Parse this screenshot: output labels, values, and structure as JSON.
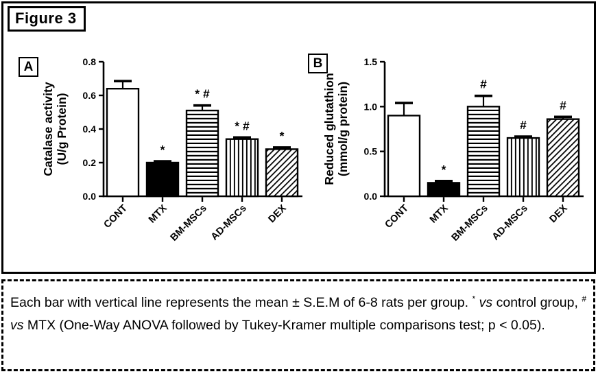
{
  "figure_label": "Figure 3",
  "panels": [
    {
      "label": "A"
    },
    {
      "label": "B"
    }
  ],
  "chart_data": [
    {
      "type": "bar",
      "panel": "A",
      "ylabel_line1": "Catalase activity",
      "ylabel_line2": "(U/g Protein)",
      "categories": [
        "CONT",
        "MTX",
        "BM-MSCs",
        "AD-MSCs",
        "DEX"
      ],
      "values": [
        0.64,
        0.2,
        0.51,
        0.34,
        0.28
      ],
      "errors": [
        0.045,
        0.008,
        0.03,
        0.01,
        0.01
      ],
      "annotations": [
        "",
        "*",
        "* #",
        "* #",
        "*"
      ],
      "patterns": [
        "open",
        "solid",
        "hlines",
        "vlines",
        "diag"
      ],
      "ylim": [
        0,
        0.8
      ],
      "yticks": [
        0.0,
        0.2,
        0.4,
        0.6,
        0.8
      ],
      "ytick_labels": [
        "0.0",
        "0.2",
        "0.4",
        "0.6",
        "0.8"
      ],
      "grid": false,
      "legend": "none"
    },
    {
      "type": "bar",
      "panel": "B",
      "ylabel_line1": "Reduced glutathion",
      "ylabel_line2": "(mmol/g protein)",
      "categories": [
        "CONT",
        "MTX",
        "BM-MSCs",
        "AD-MSCs",
        "DEX"
      ],
      "values": [
        0.9,
        0.15,
        1.0,
        0.65,
        0.86
      ],
      "errors": [
        0.14,
        0.02,
        0.12,
        0.015,
        0.025
      ],
      "annotations": [
        "",
        "*",
        "#",
        "#",
        "#"
      ],
      "patterns": [
        "open",
        "solid",
        "hlines",
        "vlines",
        "diag"
      ],
      "ylim": [
        0,
        1.5
      ],
      "yticks": [
        0.0,
        0.5,
        1.0,
        1.5
      ],
      "ytick_labels": [
        "0.0",
        "0.5",
        "1.0",
        "1.5"
      ],
      "grid": false,
      "legend": "none"
    }
  ],
  "caption": {
    "segments": [
      {
        "text": "Each bar with vertical line represents the mean ± S.E.M of 6-8 rats per group. ",
        "style": "normal"
      },
      {
        "text": "*",
        "style": "sup"
      },
      {
        "text": " ",
        "style": "normal"
      },
      {
        "text": "vs",
        "style": "italic"
      },
      {
        "text": " control group, ",
        "style": "normal"
      },
      {
        "text": "#",
        "style": "sup"
      },
      {
        "text": " ",
        "style": "normal"
      },
      {
        "text": "vs",
        "style": "italic"
      },
      {
        "text": " MTX (One-Way ANOVA followed by Tukey-Kramer multiple comparisons test; p < 0.05).",
        "style": "normal"
      }
    ]
  },
  "colors": {
    "ink": "#000000",
    "background": "#ffffff"
  }
}
